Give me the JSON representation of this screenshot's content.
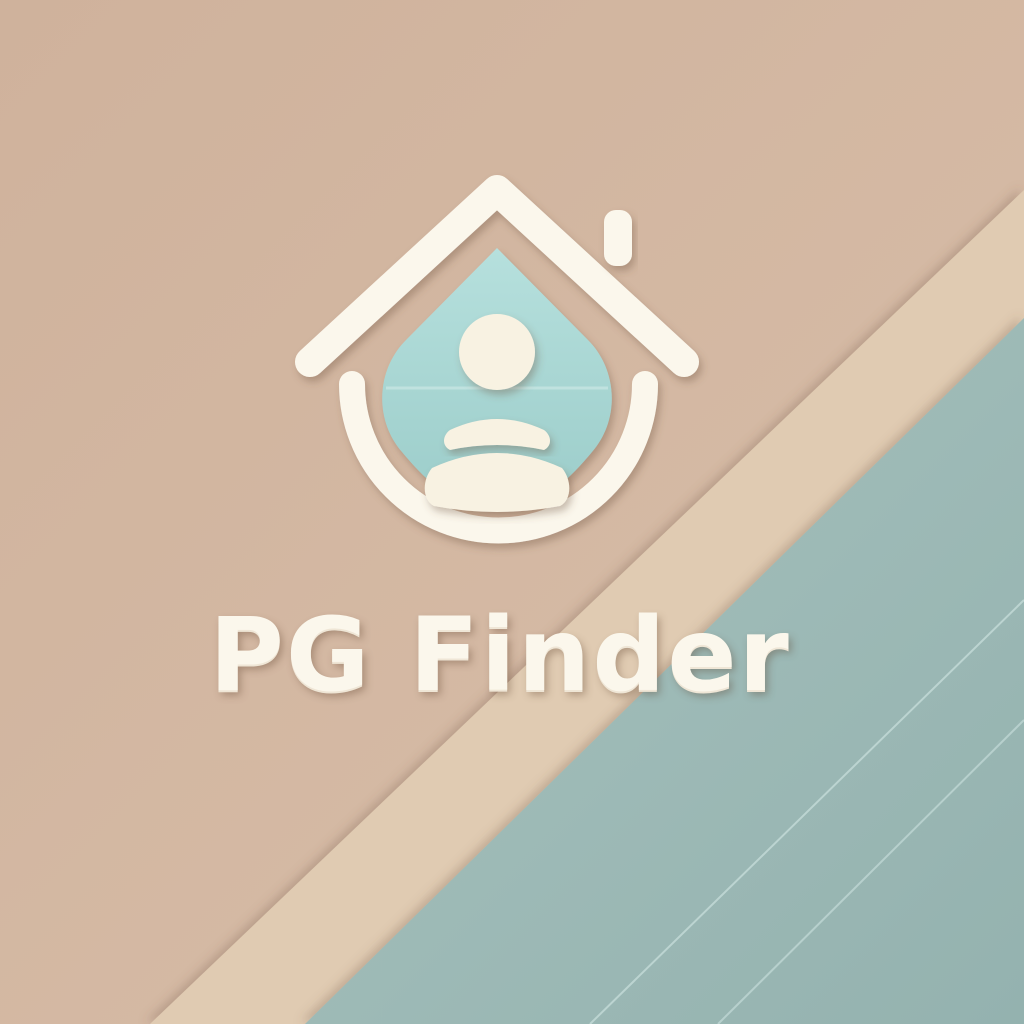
{
  "brand": {
    "name": "PG Finder"
  },
  "logo": {
    "icon": "house-with-person-icon"
  },
  "colors": {
    "background_tan": "#d4b8a3",
    "background_beige": "#e2cdb3",
    "background_teal": "#9fb9b6",
    "logo_cream": "#fbf7ec",
    "logo_mint": "#a9d7d5",
    "accent": "#8fb3b0"
  }
}
